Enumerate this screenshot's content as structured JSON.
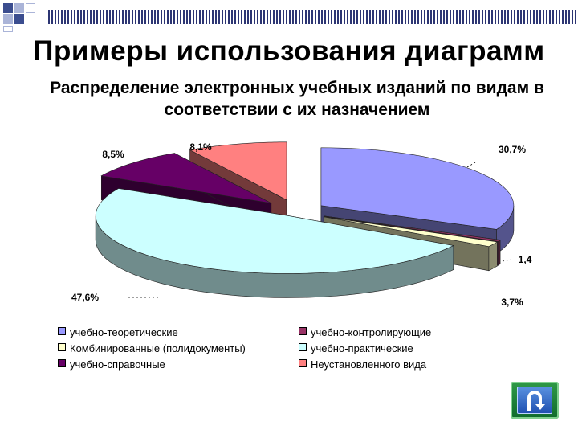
{
  "slide": {
    "title": "Примеры использования диаграмм"
  },
  "chart_data": {
    "type": "pie",
    "style": "3d-exploded",
    "title": "Распределение электронных учебных изданий по видам в соответствии с их назначением",
    "legend_position": "bottom",
    "slices": [
      {
        "name": "учебно-теоретические",
        "value": 30.7,
        "label": "30,7%",
        "color": "#9999ff"
      },
      {
        "name": "учебно-контролирующие",
        "value": 0.4,
        "label": "",
        "color": "#993366"
      },
      {
        "name": "Комбинированные (полидокументы)",
        "value": 1.4,
        "label": "1,4",
        "color": "#ffffcc"
      },
      {
        "name": "учебно-практические",
        "value": 47.6,
        "label": "47,6%",
        "color": "#ccffff"
      },
      {
        "name": "учебно-справочные",
        "value": 8.5,
        "label": "8,5%",
        "color": "#660066"
      },
      {
        "name": "Неустановленного вида",
        "value": 8.1,
        "label": "8,1%",
        "color": "#ff8080"
      }
    ],
    "extra_labels": [
      {
        "text": "3,7%"
      }
    ]
  },
  "nav": {
    "return_icon": "u-turn-arrow-icon",
    "colors": {
      "outer": "#1f8a3c",
      "inner": "#3a6fd0"
    }
  }
}
